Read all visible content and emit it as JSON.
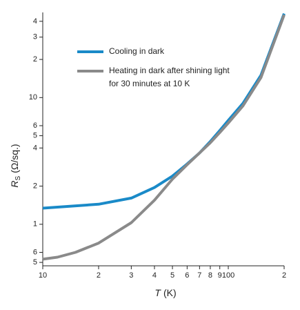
{
  "chart_data": {
    "type": "line",
    "x_label": {
      "symbol": "T",
      "unit": "(K)"
    },
    "y_label": {
      "symbol": "R",
      "subscript": "S",
      "unit": "(Ω/sq.)"
    },
    "xscale": "log",
    "yscale": "log",
    "xlim": [
      10,
      200
    ],
    "ylim": [
      0.47,
      47
    ],
    "xticks": [
      10,
      {
        "value": 20,
        "label": "2"
      },
      {
        "value": 30,
        "label": "3"
      },
      {
        "value": 40,
        "label": "4"
      },
      {
        "value": 50,
        "label": "5"
      },
      {
        "value": 60,
        "label": "6"
      },
      {
        "value": 70,
        "label": "7"
      },
      {
        "value": 80,
        "label": "8"
      },
      {
        "value": 90,
        "label": "9"
      },
      100,
      {
        "value": 200,
        "label": "2"
      }
    ],
    "yticks": [
      {
        "value": 0.5,
        "label": "5"
      },
      {
        "value": 0.6,
        "label": "6"
      },
      1,
      2,
      4,
      5,
      6,
      10,
      {
        "value": 20,
        "label": "2"
      },
      {
        "value": 30,
        "label": "3"
      },
      {
        "value": 40,
        "label": "4"
      }
    ],
    "series": [
      {
        "name": "Cooling in dark",
        "color": "#1a8ac8",
        "x": [
          10,
          20,
          30,
          40,
          50,
          60,
          70,
          80,
          90,
          100,
          120,
          150,
          200
        ],
        "values": [
          1.34,
          1.44,
          1.61,
          1.95,
          2.4,
          2.99,
          3.65,
          4.5,
          5.5,
          6.6,
          9.0,
          15,
          46
        ]
      },
      {
        "name": "Heating in dark after shining light for 30 minutes at 10 K",
        "color": "#8a8a8a",
        "x": [
          10,
          12,
          15,
          20,
          30,
          40,
          50,
          60,
          70,
          80,
          90,
          100,
          120,
          150,
          200
        ],
        "values": [
          0.53,
          0.55,
          0.6,
          0.71,
          1.03,
          1.55,
          2.27,
          2.95,
          3.65,
          4.4,
          5.3,
          6.3,
          8.6,
          14.4,
          45
        ]
      }
    ]
  }
}
